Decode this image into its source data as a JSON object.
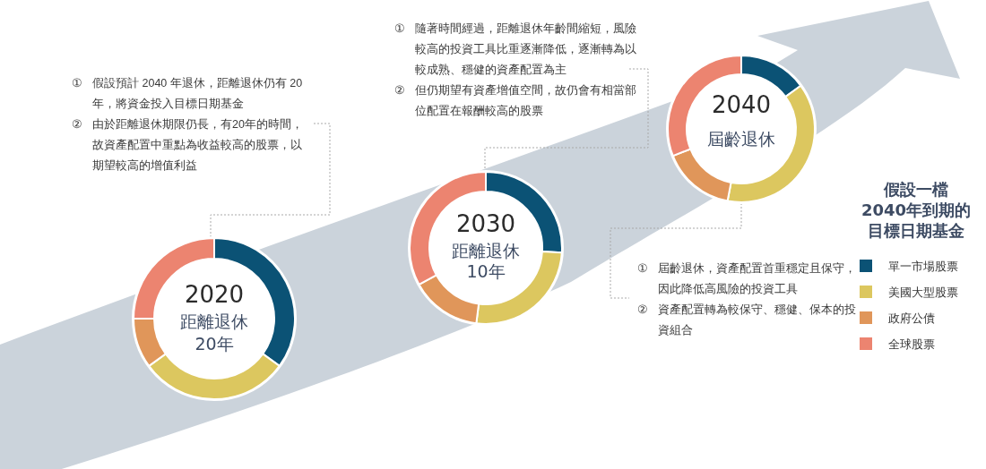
{
  "chart_data": [
    {
      "type": "donut",
      "title": "2020",
      "subtitle": "距離退休\n20年",
      "categories": [
        null,
        null,
        null,
        null
      ],
      "values": [
        35,
        30,
        10,
        25
      ],
      "colors": [
        "#0b5275",
        "#dcc75f",
        "#e0965a",
        "#ec8470"
      ],
      "annotations": [
        "① 假設預計 2040 年退休，距離退休仍有 20 年，將資金投入目標日期基金",
        "② 由於距離退休期限仍長，有20年的時間，故資產配置中重點為收益較高的股票，以期望較高的增值利益"
      ]
    },
    {
      "type": "donut",
      "title": "2030",
      "subtitle": "距離退休\n10年",
      "categories": [
        null,
        null,
        null,
        null
      ],
      "values": [
        26,
        26,
        15,
        33
      ],
      "colors": [
        "#0b5275",
        "#dcc75f",
        "#e0965a",
        "#ec8470"
      ],
      "annotations": [
        "① 隨著時間經過，距離退休年齡間縮短，風險較高的投資工具比重逐漸降低，逐漸轉為以較成熟、穩健的資產配置為主",
        "② 但仍期望有資產增值空間，故仍會有相當部位配置在報酬較高的股票"
      ]
    },
    {
      "type": "donut",
      "title": "2040",
      "subtitle": "屆齡退休",
      "categories": [
        "單一市場股票",
        "美國大型股票",
        "政府公債",
        "全球股票"
      ],
      "values": [
        15,
        38,
        16,
        31
      ],
      "colors": [
        "#0b5275",
        "#dcc75f",
        "#e0965a",
        "#ec8470"
      ],
      "legend": "right",
      "legend_title": "假設一檔2040年到期的目標日期基金",
      "annotations": [
        "① 屆齡退休，資產配置首重穩定且保守，因此降低高風險的投資工具",
        "② 資產配置轉為較保守、穩健、保本的投資組合"
      ]
    }
  ]
}
